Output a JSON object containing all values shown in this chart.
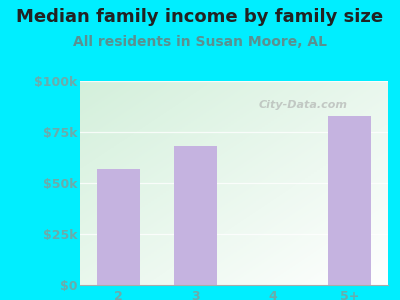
{
  "title": "Median family income by family size",
  "subtitle": "All residents in Susan Moore, AL",
  "categories": [
    "2",
    "3",
    "4",
    "5+"
  ],
  "values": [
    57000,
    68000,
    0,
    83000
  ],
  "bar_color": "#c5b3e0",
  "title_color": "#222222",
  "subtitle_color": "#5a9090",
  "tick_label_color": "#6aacac",
  "bg_color": "#00eeff",
  "ylim": [
    0,
    100000
  ],
  "yticks": [
    0,
    25000,
    50000,
    75000,
    100000
  ],
  "ytick_labels": [
    "$0",
    "$25k",
    "$50k",
    "$75k",
    "$100k"
  ],
  "watermark": "City-Data.com",
  "title_fontsize": 13,
  "subtitle_fontsize": 10,
  "tick_fontsize": 9
}
